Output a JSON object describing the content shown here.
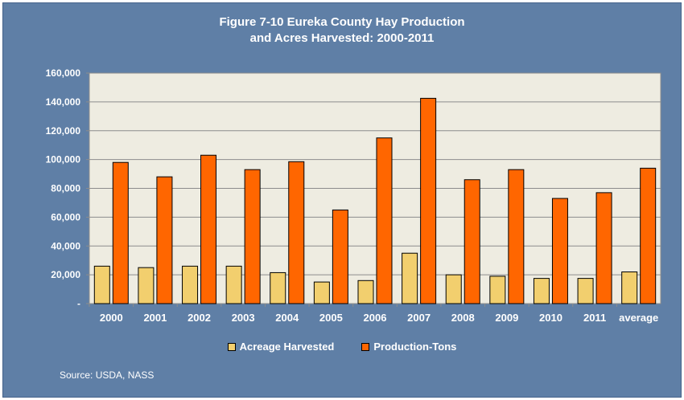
{
  "chart_data": {
    "type": "bar",
    "title_line1": "Figure 7-10 Eureka County Hay Production",
    "title_line2": "and Acres Harvested: 2000-2011",
    "categories": [
      "2000",
      "2001",
      "2002",
      "2003",
      "2004",
      "2005",
      "2006",
      "2007",
      "2008",
      "2009",
      "2010",
      "2011",
      "average"
    ],
    "series": [
      {
        "name": "Acreage Harvested",
        "color": "#f2cf6e",
        "values": [
          26000,
          25000,
          26000,
          26000,
          21500,
          15000,
          16000,
          35000,
          20000,
          19000,
          17500,
          17500,
          22000
        ]
      },
      {
        "name": "Production-Tons",
        "color": "#ff6600",
        "values": [
          98000,
          88000,
          103000,
          93000,
          98500,
          65000,
          115000,
          142500,
          86000,
          93000,
          73000,
          77000,
          94000
        ]
      }
    ],
    "ylim": [
      0,
      160000
    ],
    "yticks": [
      0,
      20000,
      40000,
      60000,
      80000,
      100000,
      120000,
      140000,
      160000
    ],
    "ytick_labels": [
      "-",
      "20,000",
      "40,000",
      "60,000",
      "80,000",
      "100,000",
      "120,000",
      "140,000",
      "160,000"
    ],
    "grid": true,
    "legend_position": "bottom"
  },
  "source": "Source: USDA, NASS"
}
